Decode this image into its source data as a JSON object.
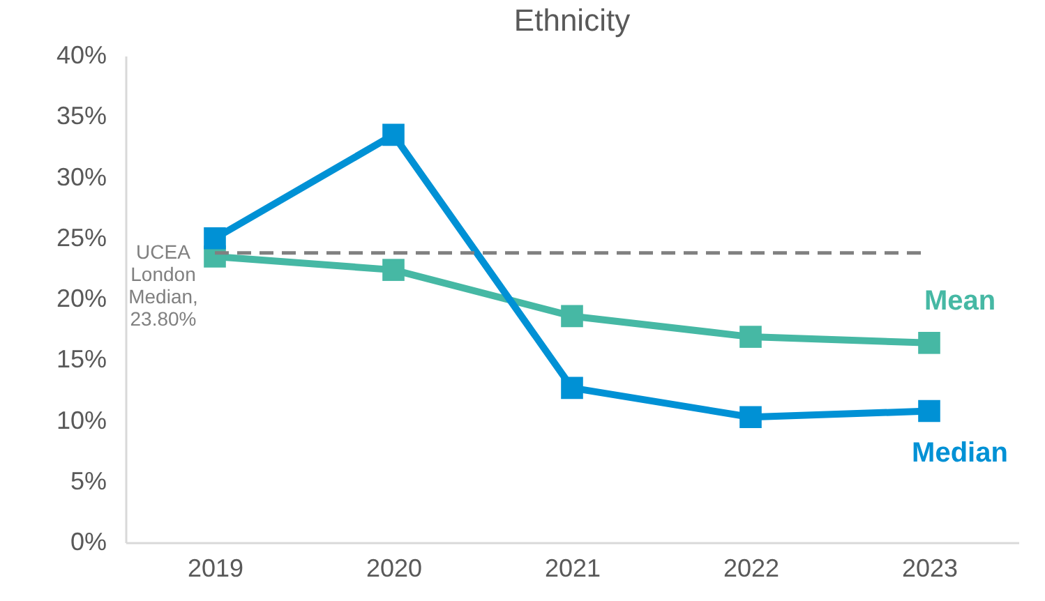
{
  "chart_data": {
    "type": "line",
    "title": "Ethnicity",
    "categories": [
      "2019",
      "2020",
      "2021",
      "2022",
      "2023"
    ],
    "series": [
      {
        "name": "Mean",
        "color": "#46b8a4",
        "values": [
          23.5,
          22.4,
          18.6,
          16.9,
          16.4
        ]
      },
      {
        "name": "Median",
        "color": "#0091d5",
        "values": [
          25,
          33.5,
          12.7,
          10.3,
          10.8
        ]
      }
    ],
    "ylim": [
      0,
      40
    ],
    "yticks": [
      {
        "value": 0,
        "label": "0%"
      },
      {
        "value": 5,
        "label": "5%"
      },
      {
        "value": 10,
        "label": "10%"
      },
      {
        "value": 15,
        "label": "15%"
      },
      {
        "value": 20,
        "label": "20%"
      },
      {
        "value": 25,
        "label": "25%"
      },
      {
        "value": 30,
        "label": "30%"
      },
      {
        "value": 35,
        "label": "35%"
      },
      {
        "value": 40,
        "label": "40%"
      }
    ],
    "ref_lines": [
      {
        "axis": "y",
        "value": 23.8,
        "label": "UCEA London Median, 23.80%",
        "color": "#808080",
        "line_style": "dashed"
      }
    ],
    "marker": "square",
    "grid": false,
    "line_style": "solid"
  }
}
